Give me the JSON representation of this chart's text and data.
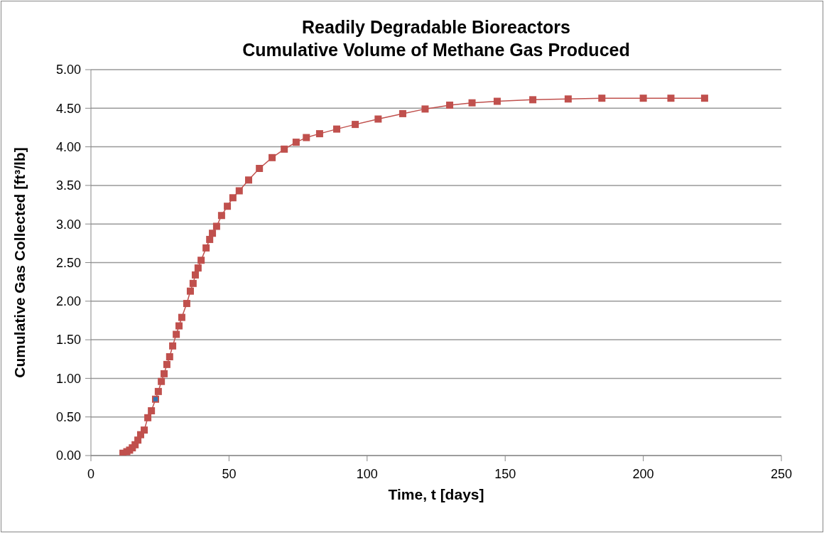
{
  "chart_data": {
    "type": "line",
    "title": "Readily Degradable Bioreactors\nCumulative Volume of Methane Gas Produced",
    "xlabel": "Time, t [days]",
    "ylabel": "Cumulative Gas Collected [ft³/lb]",
    "xlim": [
      0,
      250
    ],
    "xticks": [
      0,
      50,
      100,
      150,
      200,
      250
    ],
    "ylim": [
      0,
      5
    ],
    "yticks": [
      {
        "value": 0,
        "label": "0.00"
      },
      {
        "value": 0.5,
        "label": "0.50"
      },
      {
        "value": 1,
        "label": "1.00"
      },
      {
        "value": 1.5,
        "label": "1.50"
      },
      {
        "value": 2,
        "label": "2.00"
      },
      {
        "value": 2.5,
        "label": "2.50"
      },
      {
        "value": 3,
        "label": "3.00"
      },
      {
        "value": 3.5,
        "label": "3.50"
      },
      {
        "value": 4,
        "label": "4.00"
      },
      {
        "value": 4.5,
        "label": "4.50"
      },
      {
        "value": 5,
        "label": "5.00"
      }
    ],
    "grid": "y",
    "marker": "square",
    "line_style": "solid",
    "legend": false,
    "series": [
      {
        "type": "line",
        "color": "#c0504d",
        "x": [
          11.6,
          13,
          14,
          15,
          16,
          17,
          18,
          19.3,
          20.6,
          21.9,
          23.4,
          24.4,
          25.5,
          26.5,
          27.5,
          28.5,
          29.6,
          30.9,
          31.9,
          32.9,
          34.7,
          36,
          37,
          37.8,
          38.8,
          39.9,
          41.7,
          43,
          44,
          45.5,
          47.3,
          49.4,
          51.4,
          53.7,
          57.1,
          61,
          65.6,
          70,
          74.3,
          78,
          82.8,
          89,
          95.7,
          104,
          112.9,
          121,
          129.9,
          138,
          147.1,
          160,
          172.8,
          185,
          200,
          210,
          222.2
        ],
        "values": [
          0.03,
          0.05,
          0.07,
          0.1,
          0.14,
          0.2,
          0.27,
          0.33,
          0.49,
          0.58,
          0.73,
          0.83,
          0.96,
          1.06,
          1.18,
          1.28,
          1.42,
          1.57,
          1.68,
          1.79,
          1.97,
          2.13,
          2.23,
          2.34,
          2.43,
          2.53,
          2.69,
          2.8,
          2.88,
          2.97,
          3.11,
          3.23,
          3.34,
          3.43,
          3.57,
          3.72,
          3.86,
          3.97,
          4.06,
          4.12,
          4.17,
          4.23,
          4.29,
          4.36,
          4.43,
          4.49,
          4.54,
          4.57,
          4.59,
          4.61,
          4.62,
          4.63,
          4.63,
          4.63,
          4.63
        ]
      },
      {
        "type": "scatter",
        "color": "#2e75b6",
        "x": [
          23.4
        ],
        "values": [
          0.73
        ]
      }
    ]
  }
}
